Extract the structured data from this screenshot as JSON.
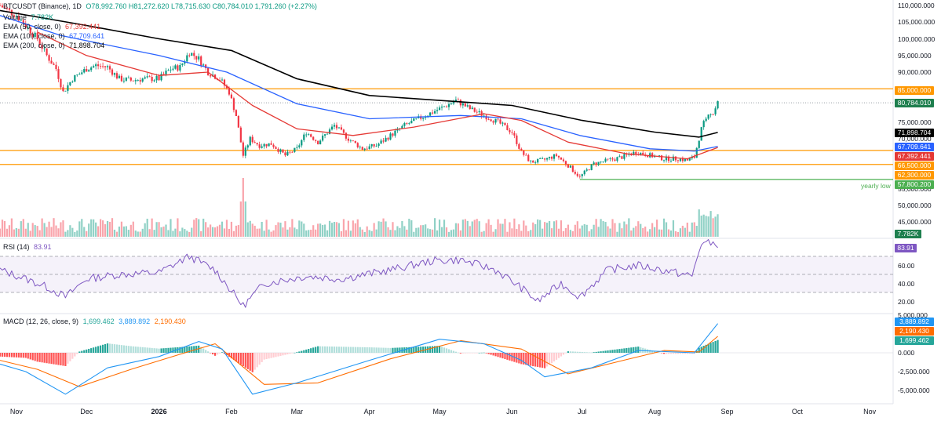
{
  "header": {
    "symbol": "BTCUSDT (Binance), 1D",
    "ohlc": "O78,992.760 H81,272.620 L78,715.630 C80,784.010 1,791.260 (+2.27%)",
    "volume_label": "Volume",
    "volume_value": "7.782K"
  },
  "indicators": {
    "ema50": {
      "label": "EMA (50, close, 0)",
      "value": "67,392.441",
      "color": "#e53935"
    },
    "ema100": {
      "label": "EMA (100, close, 0)",
      "value": "67,709.641",
      "color": "#2962ff"
    },
    "ema200": {
      "label": "EMA (200, close, 0)",
      "value": "71,898.704",
      "color": "#000000"
    },
    "rsi": {
      "label": "RSI (14)",
      "value": "83.91",
      "color": "#7e57c2"
    },
    "macd": {
      "label": "MACD (12, 26, close, 9)",
      "hist": "1,699.462",
      "macd": "3,889.892",
      "signal": "2,190.430",
      "hist_color": "#26a69a",
      "macd_color": "#2196f3",
      "signal_color": "#ff6d00"
    }
  },
  "annotations": {
    "yearly_low": "yearly low"
  },
  "price_tags": {
    "r85000": "85,000.000",
    "last": "80,784.010",
    "ema200": "71,898.704",
    "ema100": "67,709.641",
    "ema50": "67,392.441",
    "s66500": "66,500.000",
    "s62300": "62,300.000",
    "low": "57,800.200",
    "volume": "7.782K",
    "rsi": "83.91",
    "macd": "3,889.892",
    "signal": "2,190.430",
    "hist": "1,699.462"
  },
  "price_axis": [
    "110,000.000",
    "105,000.000",
    "100,000.000",
    "95,000.000",
    "90,000.000",
    "75,000.000",
    "70,000.000",
    "55,000.000",
    "50,000.000",
    "45,000.000"
  ],
  "rsi_axis": [
    "60.00",
    "40.00",
    "20.00"
  ],
  "macd_axis": [
    "5,000.000",
    "0.000",
    "-2,500.000",
    "-5,000.000"
  ],
  "chart_data": {
    "type": "candlestick",
    "x_ticks": [
      "Nov",
      "Dec",
      "2026",
      "Feb",
      "Mar",
      "Apr",
      "May",
      "Jun",
      "Jul",
      "Aug",
      "Sep",
      "Oct",
      "Nov"
    ],
    "x_tick_dates": [
      "2025-11-01",
      "2025-12-01",
      "2026-01-01",
      "2026-02-01",
      "2026-03-01",
      "2026-04-01",
      "2026-05-01",
      "2026-06-01",
      "2026-07-01",
      "2026-08-01",
      "2026-09-01",
      "2026-10-01",
      "2026-11-01"
    ],
    "price_ylim": [
      40000,
      112000
    ],
    "horizontal_levels": [
      {
        "value": 85000,
        "color": "#ff9800"
      },
      {
        "value": 66500,
        "color": "#ff9800"
      },
      {
        "value": 62300,
        "color": "#ff9800"
      },
      {
        "value": 57800.2,
        "color": "#4caf50",
        "label": "yearly low",
        "from": "2026-06-30"
      }
    ],
    "close_path": [
      [
        "2025-10-25",
        110000
      ],
      [
        "2025-11-01",
        107000
      ],
      [
        "2025-11-05",
        104000
      ],
      [
        "2025-11-10",
        100000
      ],
      [
        "2025-11-14",
        95000
      ],
      [
        "2025-11-18",
        91000
      ],
      [
        "2025-11-21",
        84000
      ],
      [
        "2025-11-25",
        88000
      ],
      [
        "2025-12-01",
        91000
      ],
      [
        "2025-12-05",
        92000
      ],
      [
        "2025-12-10",
        91500
      ],
      [
        "2025-12-15",
        88000
      ],
      [
        "2025-12-20",
        87500
      ],
      [
        "2025-12-25",
        88000
      ],
      [
        "2026-01-01",
        88000
      ],
      [
        "2026-01-06",
        91000
      ],
      [
        "2026-01-10",
        91500
      ],
      [
        "2026-01-14",
        96000
      ],
      [
        "2026-01-18",
        94000
      ],
      [
        "2026-01-22",
        90000
      ],
      [
        "2026-01-27",
        88000
      ],
      [
        "2026-01-31",
        84000
      ],
      [
        "2026-02-03",
        77000
      ],
      [
        "2026-02-06",
        65000
      ],
      [
        "2026-02-09",
        70000
      ],
      [
        "2026-02-13",
        68000
      ],
      [
        "2026-02-18",
        68500
      ],
      [
        "2026-02-24",
        65000
      ],
      [
        "2026-03-01",
        67000
      ],
      [
        "2026-03-05",
        72000
      ],
      [
        "2026-03-10",
        69000
      ],
      [
        "2026-03-17",
        74000
      ],
      [
        "2026-03-23",
        70000
      ],
      [
        "2026-03-29",
        67000
      ],
      [
        "2026-04-04",
        68000
      ],
      [
        "2026-04-10",
        71000
      ],
      [
        "2026-04-16",
        74000
      ],
      [
        "2026-04-22",
        76000
      ],
      [
        "2026-04-28",
        78000
      ],
      [
        "2026-05-04",
        80000
      ],
      [
        "2026-05-08",
        81500
      ],
      [
        "2026-05-14",
        79000
      ],
      [
        "2026-05-20",
        77000
      ],
      [
        "2026-05-26",
        75000
      ],
      [
        "2026-06-01",
        72000
      ],
      [
        "2026-06-05",
        66000
      ],
      [
        "2026-06-09",
        63000
      ],
      [
        "2026-06-14",
        63500
      ],
      [
        "2026-06-20",
        65000
      ],
      [
        "2026-06-25",
        62000
      ],
      [
        "2026-06-30",
        58500
      ],
      [
        "2026-07-06",
        62500
      ],
      [
        "2026-07-12",
        63500
      ],
      [
        "2026-07-18",
        64500
      ],
      [
        "2026-07-24",
        66000
      ],
      [
        "2026-07-30",
        65000
      ],
      [
        "2026-08-05",
        64000
      ],
      [
        "2026-08-11",
        64000
      ],
      [
        "2026-08-15",
        63500
      ],
      [
        "2026-08-18",
        64500
      ],
      [
        "2026-08-21",
        73000
      ],
      [
        "2026-08-24",
        78000
      ],
      [
        "2026-08-26",
        77500
      ],
      [
        "2026-08-28",
        80784
      ]
    ],
    "ema50_path": [
      [
        "2025-11-10",
        102000
      ],
      [
        "2025-12-01",
        95000
      ],
      [
        "2026-01-01",
        89000
      ],
      [
        "2026-01-22",
        90000
      ],
      [
        "2026-02-10",
        80000
      ],
      [
        "2026-03-01",
        73000
      ],
      [
        "2026-03-25",
        71000
      ],
      [
        "2026-04-20",
        73500
      ],
      [
        "2026-05-20",
        77500
      ],
      [
        "2026-06-05",
        75500
      ],
      [
        "2026-06-25",
        69000
      ],
      [
        "2026-07-20",
        65500
      ],
      [
        "2026-08-15",
        64000
      ],
      [
        "2026-08-28",
        67392
      ]
    ],
    "ema100_path": [
      [
        "2025-10-25",
        107000
      ],
      [
        "2025-11-20",
        101000
      ],
      [
        "2026-01-01",
        95000
      ],
      [
        "2026-01-30",
        90000
      ],
      [
        "2026-03-01",
        80500
      ],
      [
        "2026-04-01",
        76000
      ],
      [
        "2026-05-10",
        77000
      ],
      [
        "2026-06-05",
        76000
      ],
      [
        "2026-06-30",
        71000
      ],
      [
        "2026-07-30",
        67000
      ],
      [
        "2026-08-18",
        66300
      ],
      [
        "2026-08-28",
        67710
      ]
    ],
    "ema200_path": [
      [
        "2025-10-25",
        108500
      ],
      [
        "2025-12-01",
        104000
      ],
      [
        "2026-01-01",
        100000
      ],
      [
        "2026-02-01",
        96500
      ],
      [
        "2026-03-01",
        88000
      ],
      [
        "2026-04-01",
        83000
      ],
      [
        "2026-05-01",
        81500
      ],
      [
        "2026-06-01",
        80000
      ],
      [
        "2026-07-01",
        75500
      ],
      [
        "2026-08-01",
        72000
      ],
      [
        "2026-08-20",
        70500
      ],
      [
        "2026-08-28",
        71899
      ]
    ],
    "rsi": {
      "ylim": [
        10,
        95
      ],
      "bands": [
        30,
        50,
        70
      ],
      "path": [
        [
          "2025-10-25",
          55
        ],
        [
          "2025-11-05",
          45
        ],
        [
          "2025-11-15",
          35
        ],
        [
          "2025-11-22",
          25
        ],
        [
          "2025-12-01",
          45
        ],
        [
          "2025-12-15",
          50
        ],
        [
          "2026-01-01",
          52
        ],
        [
          "2026-01-14",
          70
        ],
        [
          "2026-01-25",
          55
        ],
        [
          "2026-02-06",
          15
        ],
        [
          "2026-02-15",
          40
        ],
        [
          "2026-03-05",
          48
        ],
        [
          "2026-03-20",
          45
        ],
        [
          "2026-04-10",
          55
        ],
        [
          "2026-04-28",
          65
        ],
        [
          "2026-05-10",
          66
        ],
        [
          "2026-05-25",
          55
        ],
        [
          "2026-06-05",
          35
        ],
        [
          "2026-06-12",
          20
        ],
        [
          "2026-06-22",
          40
        ],
        [
          "2026-06-30",
          25
        ],
        [
          "2026-07-12",
          55
        ],
        [
          "2026-07-25",
          60
        ],
        [
          "2026-08-10",
          52
        ],
        [
          "2026-08-17",
          48
        ],
        [
          "2026-08-21",
          85
        ],
        [
          "2026-08-28",
          84
        ]
      ]
    },
    "macd": {
      "ylim": [
        -6000,
        5500
      ],
      "macd_path": [
        [
          "2025-10-25",
          -1500
        ],
        [
          "2025-11-05",
          -2500
        ],
        [
          "2025-11-22",
          -5500
        ],
        [
          "2025-12-10",
          -2000
        ],
        [
          "2026-01-01",
          -500
        ],
        [
          "2026-01-18",
          1500
        ],
        [
          "2026-01-28",
          500
        ],
        [
          "2026-02-10",
          -5500
        ],
        [
          "2026-03-01",
          -4000
        ],
        [
          "2026-04-01",
          -1000
        ],
        [
          "2026-05-01",
          1800
        ],
        [
          "2026-05-20",
          1200
        ],
        [
          "2026-06-05",
          -1000
        ],
        [
          "2026-06-15",
          -3200
        ],
        [
          "2026-07-05",
          -2000
        ],
        [
          "2026-07-25",
          300
        ],
        [
          "2026-08-18",
          0
        ],
        [
          "2026-08-28",
          3890
        ]
      ],
      "signal_path": [
        [
          "2025-10-25",
          -1000
        ],
        [
          "2025-11-10",
          -2200
        ],
        [
          "2025-11-28",
          -4500
        ],
        [
          "2025-12-20",
          -2200
        ],
        [
          "2026-01-10",
          -200
        ],
        [
          "2026-01-25",
          1200
        ],
        [
          "2026-02-15",
          -4200
        ],
        [
          "2026-03-10",
          -4000
        ],
        [
          "2026-04-10",
          -800
        ],
        [
          "2026-05-10",
          1600
        ],
        [
          "2026-06-05",
          500
        ],
        [
          "2026-06-25",
          -2800
        ],
        [
          "2026-07-20",
          -900
        ],
        [
          "2026-08-05",
          300
        ],
        [
          "2026-08-20",
          100
        ],
        [
          "2026-08-28",
          2190
        ]
      ]
    }
  }
}
